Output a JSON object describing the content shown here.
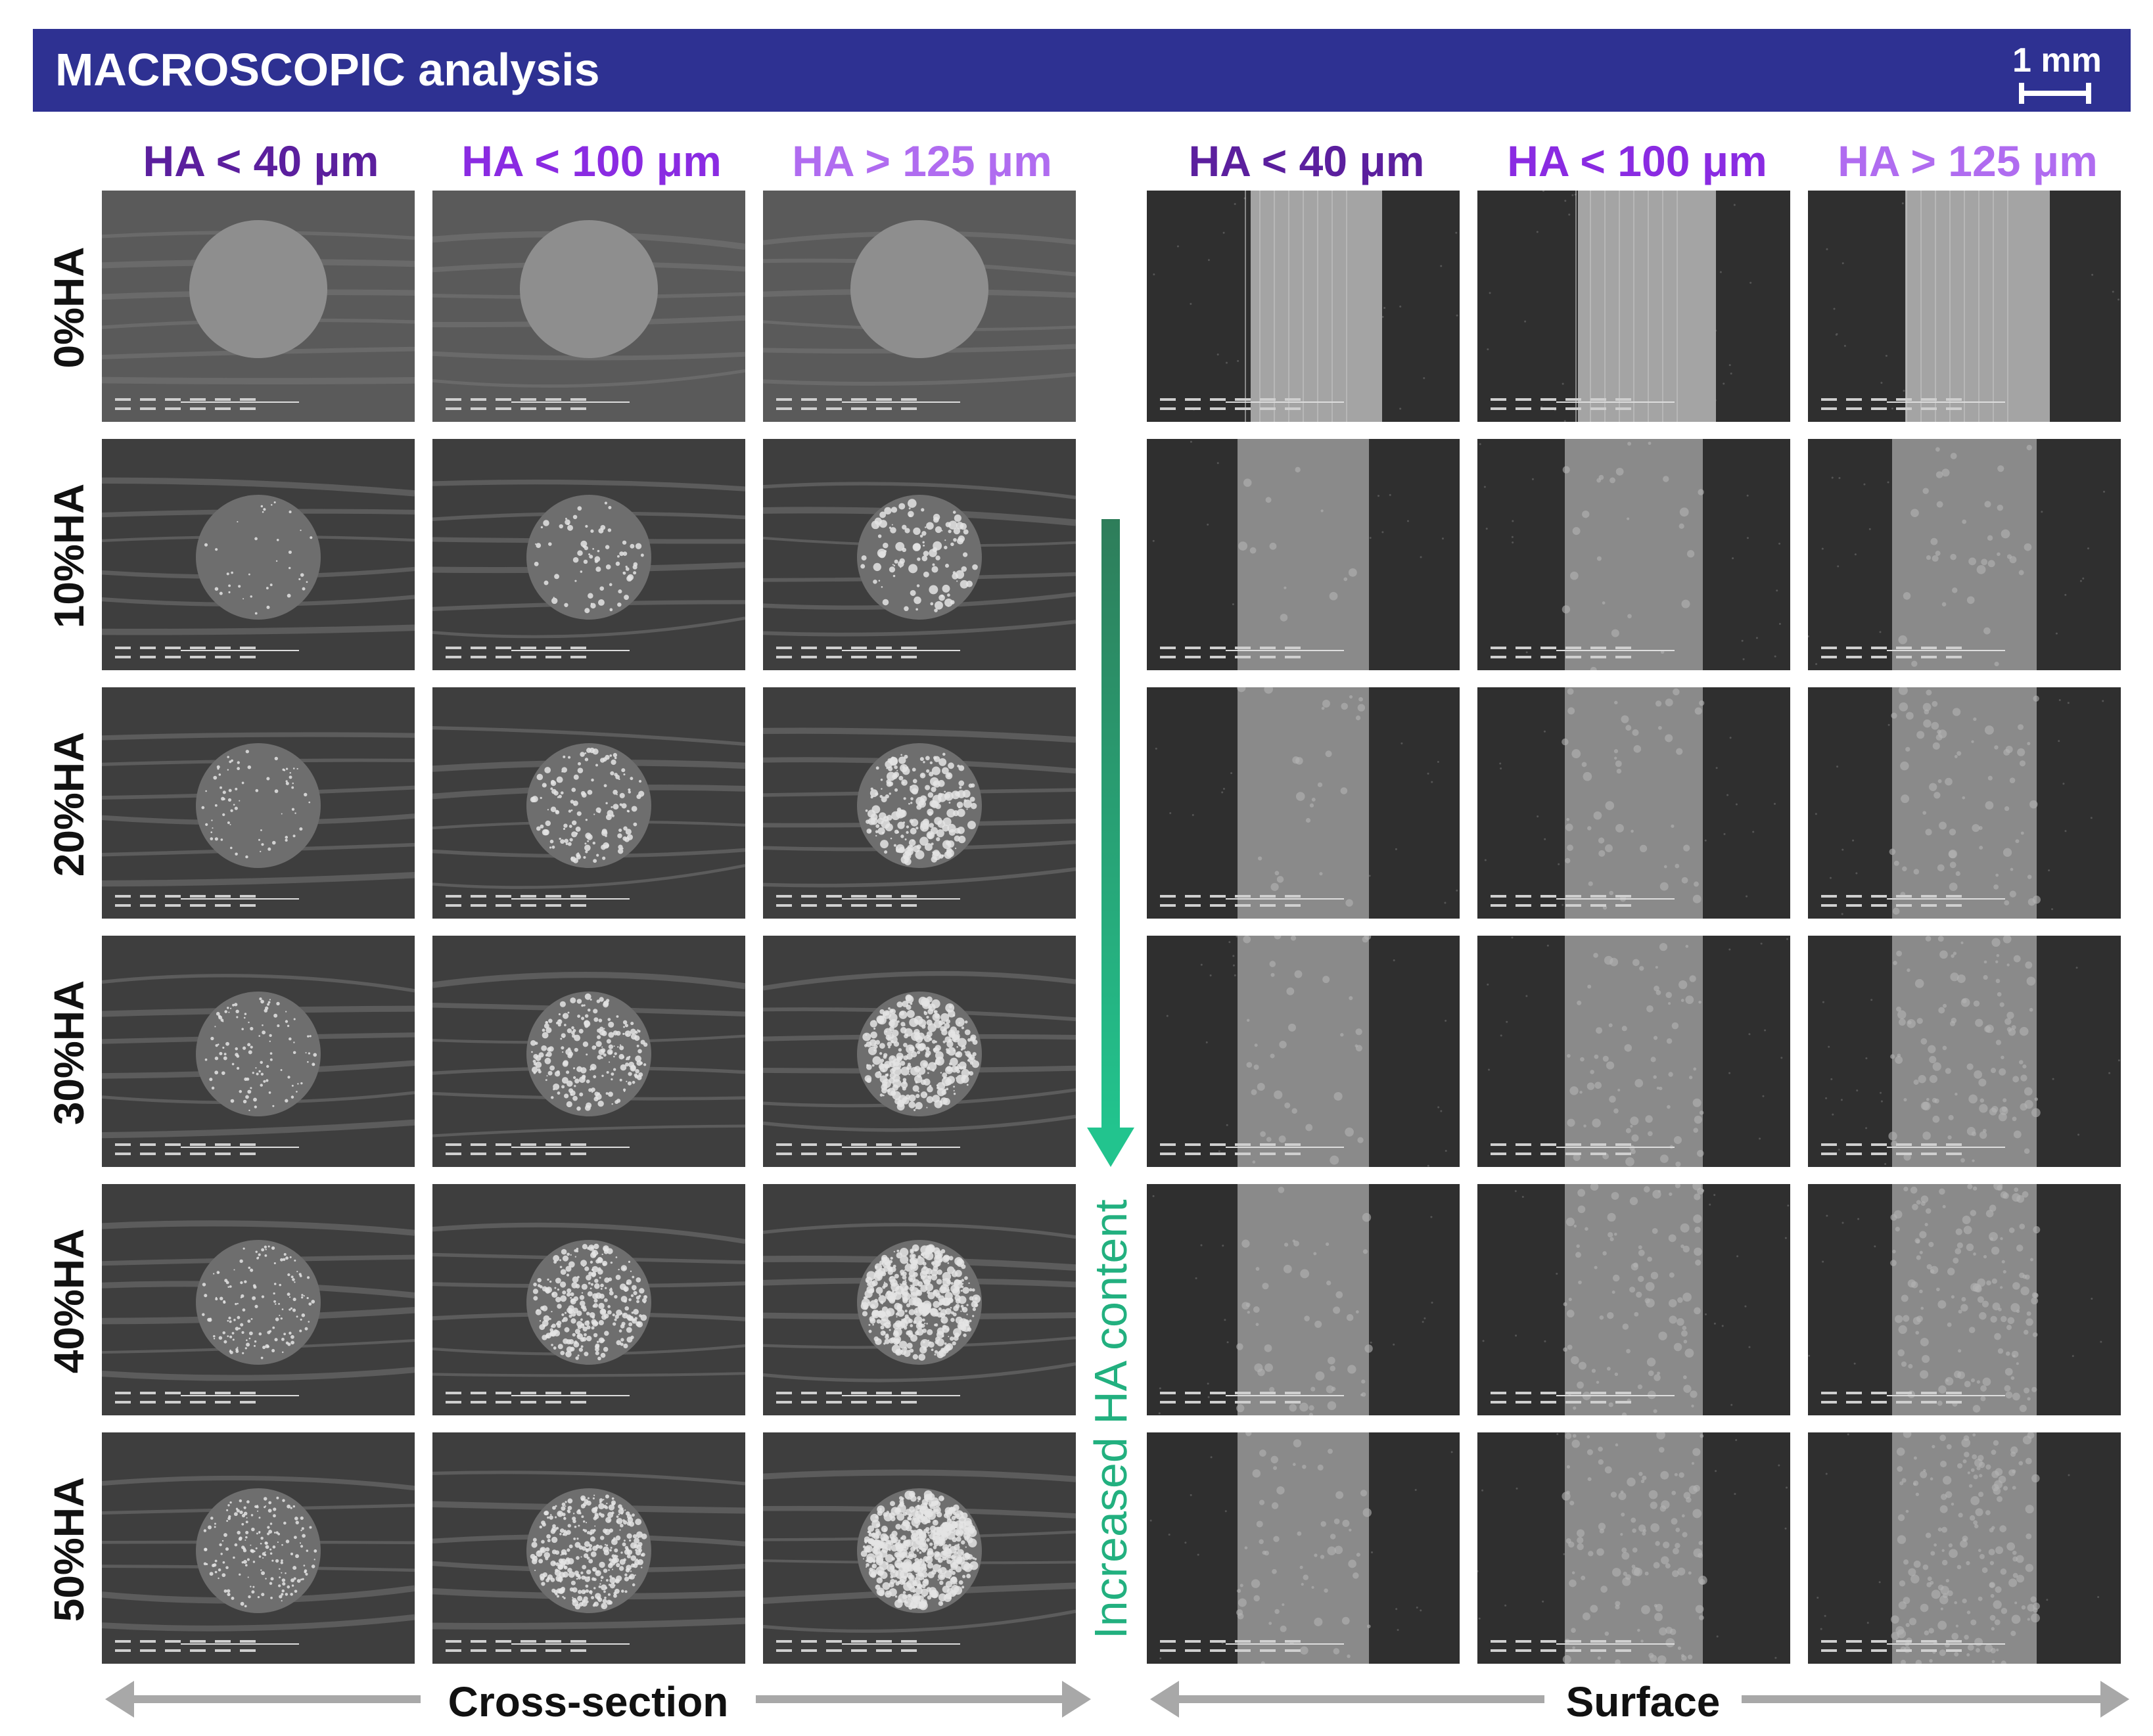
{
  "banner": {
    "title": "MACROSCOPIC analysis",
    "scale_label": "1 mm",
    "color": "#2e3192"
  },
  "column_headers": {
    "cross_section": [
      {
        "label": "HA < 40 μm",
        "color": "#5b1f9e"
      },
      {
        "label": "HA < 100 μm",
        "color": "#8a2be2"
      },
      {
        "label": "HA > 125 μm",
        "color": "#b06cf0"
      }
    ],
    "surface": [
      {
        "label": "HA < 40 μm",
        "color": "#5b1f9e"
      },
      {
        "label": "HA < 100 μm",
        "color": "#8a2be2"
      },
      {
        "label": "HA > 125 μm",
        "color": "#b06cf0"
      }
    ]
  },
  "row_labels": [
    "0%HA",
    "10%HA",
    "20%HA",
    "30%HA",
    "40%HA",
    "50%HA"
  ],
  "arrow_label": "Increased HA content",
  "section_labels": {
    "left": "Cross-section",
    "right": "Surface"
  },
  "colors": {
    "arrow": "#22b07f",
    "section_arrow": "#a8a8a8"
  }
}
